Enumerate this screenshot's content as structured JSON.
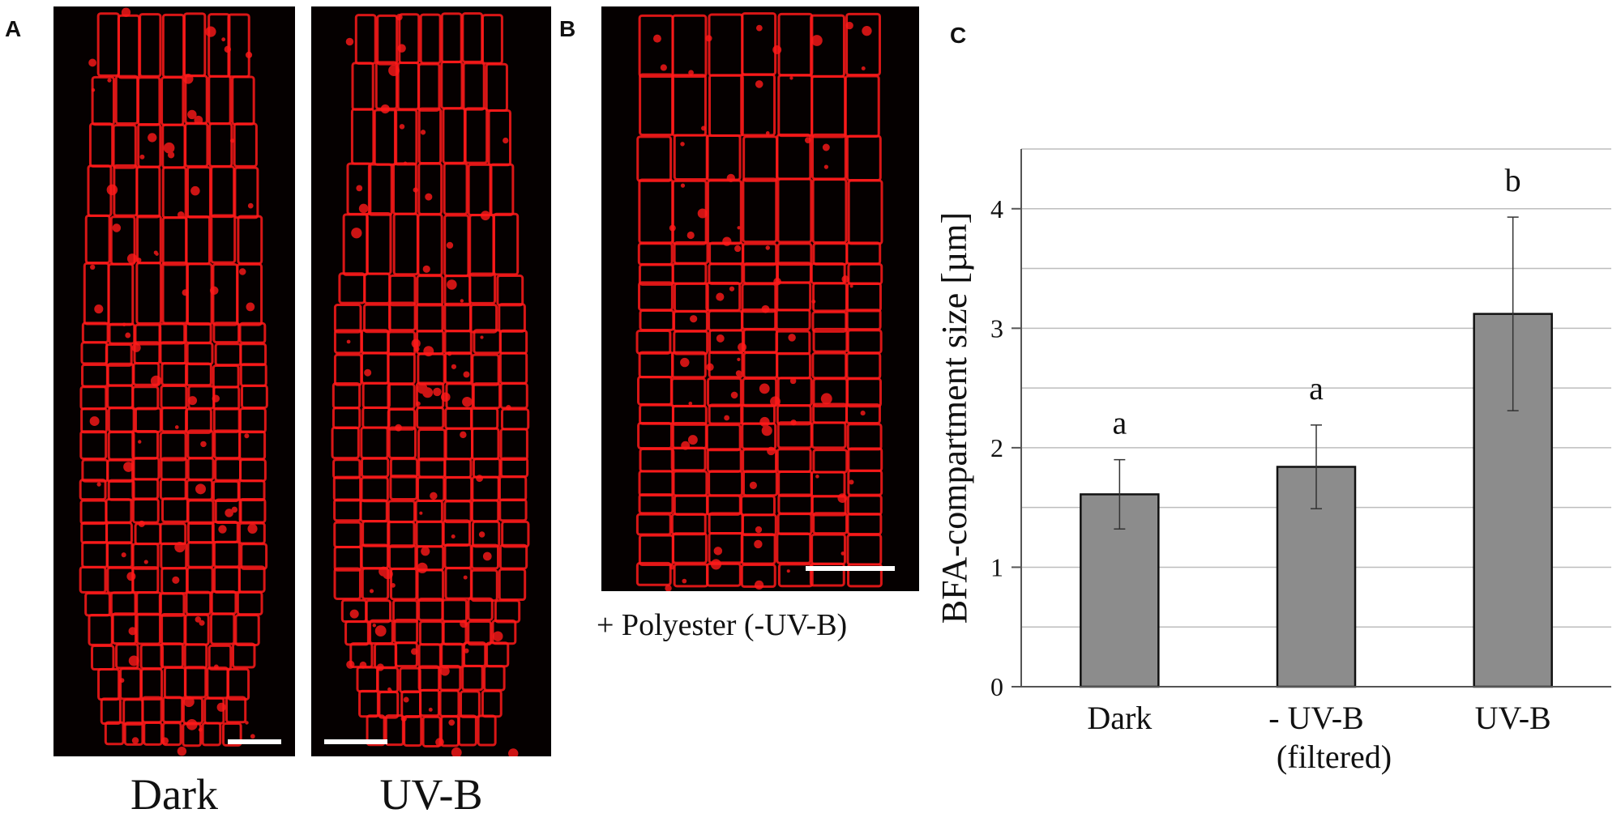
{
  "panels": {
    "a": {
      "letter": "A",
      "captions": [
        "Dark",
        "UV-B"
      ]
    },
    "b": {
      "letter": "B",
      "caption": "+ Polyester (-UV-B)"
    },
    "c": {
      "letter": "C"
    }
  },
  "colors": {
    "cell_wall": "#ff1a1a",
    "bar_fill": "#8c8c8c",
    "background": "#050000"
  },
  "chart_data": {
    "type": "bar",
    "categories": [
      "Dark",
      "- UV-B\n(filtered)",
      "UV-B"
    ],
    "category_lines": [
      [
        "Dark"
      ],
      [
        "- UV-B",
        "(filtered)"
      ],
      [
        "UV-B"
      ]
    ],
    "values": [
      1.61,
      1.84,
      3.12
    ],
    "errors": [
      0.29,
      0.35,
      0.81
    ],
    "significance": [
      "a",
      "a",
      "b"
    ],
    "ylabel": "BFA-compartment size [µm]",
    "ylim": [
      0,
      4.5
    ],
    "yticks": [
      0,
      1,
      2,
      3,
      4
    ],
    "grid": true
  }
}
